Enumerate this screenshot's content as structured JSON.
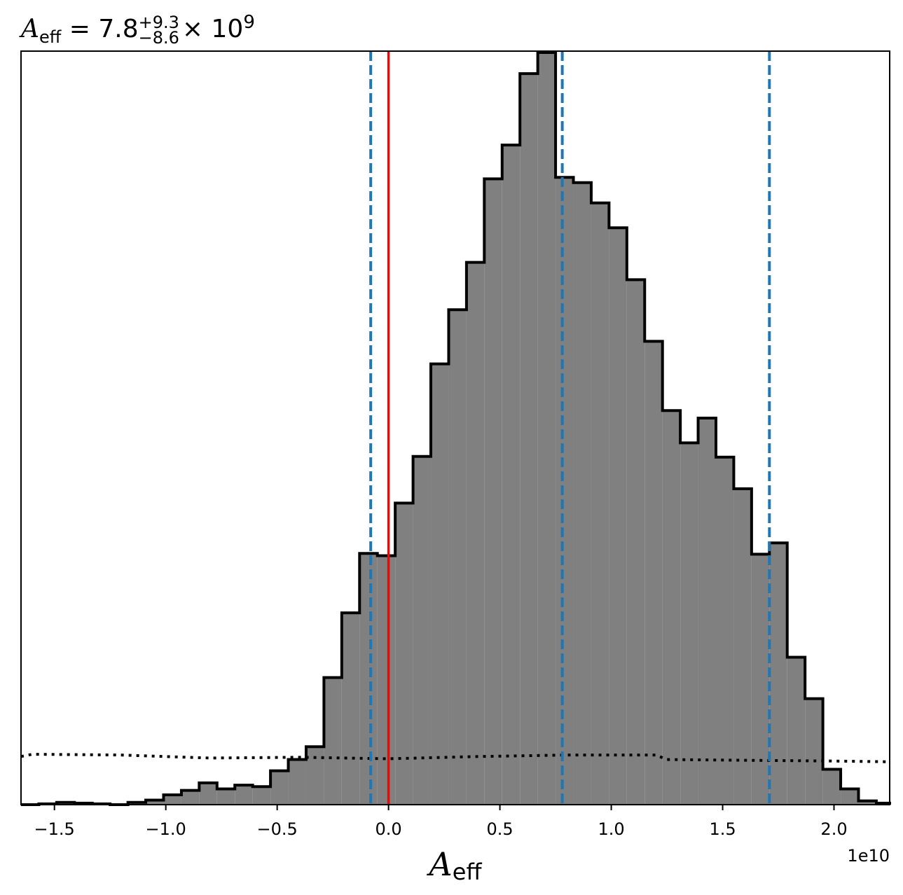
{
  "title": {
    "symbol": "A",
    "symbol_sub": "eff",
    "equals": "= 7.8",
    "sup": "+9.3",
    "sub": "−8.6",
    "times": "× 10",
    "exp": "9"
  },
  "chart_data": {
    "type": "histogram",
    "xlabel_symbol": "A",
    "xlabel_sub": "eff",
    "offset_text": "1e10",
    "xlim": [
      -1.65,
      2.25
    ],
    "ylim": [
      0,
      1.0
    ],
    "xticks": [
      -1.5,
      -1.0,
      -0.5,
      0.0,
      0.5,
      1.0,
      1.5,
      2.0
    ],
    "xtick_labels": [
      "−1.5",
      "−1.0",
      "−0.5",
      "0.0",
      "0.5",
      "1.0",
      "1.5",
      "2.0"
    ],
    "show_yticks": false,
    "bins": {
      "edges": [
        -1.65,
        -1.57,
        -1.49,
        -1.41,
        -1.33,
        -1.25,
        -1.17,
        -1.09,
        -1.01,
        -0.93,
        -0.85,
        -0.77,
        -0.69,
        -0.61,
        -0.53,
        -0.45,
        -0.37,
        -0.29,
        -0.21,
        -0.13,
        -0.05,
        0.03,
        0.11,
        0.19,
        0.27,
        0.35,
        0.43,
        0.51,
        0.59,
        0.67,
        0.75,
        0.83,
        0.91,
        0.99,
        1.07,
        1.15,
        1.23,
        1.31,
        1.39,
        1.47,
        1.55,
        1.63,
        1.71,
        1.79,
        1.87,
        1.95,
        2.03,
        2.11,
        2.19,
        2.25
      ],
      "counts": [
        0.0,
        0.001,
        0.003,
        0.002,
        0.001,
        0.0,
        0.003,
        0.006,
        0.013,
        0.019,
        0.029,
        0.021,
        0.026,
        0.024,
        0.045,
        0.06,
        0.077,
        0.169,
        0.255,
        0.334,
        0.331,
        0.401,
        0.463,
        0.586,
        0.658,
        0.721,
        0.832,
        0.877,
        0.972,
        1.0,
        0.834,
        0.827,
        0.8,
        0.767,
        0.698,
        0.616,
        0.524,
        0.481,
        0.514,
        0.462,
        0.42,
        0.333,
        0.348,
        0.196,
        0.141,
        0.047,
        0.021,
        0.005,
        0.002
      ]
    },
    "prior": {
      "x": [
        -1.65,
        -1.6,
        -1.2,
        -0.8,
        -0.4,
        0.0,
        0.4,
        0.8,
        1.2,
        1.25,
        1.6,
        2.0,
        2.25
      ],
      "y": [
        0.064,
        0.067,
        0.066,
        0.062,
        0.063,
        0.061,
        0.064,
        0.066,
        0.066,
        0.06,
        0.059,
        0.058,
        0.057
      ]
    },
    "vlines": {
      "truth": 0.0,
      "quantiles": [
        -0.08,
        0.78,
        1.71
      ]
    },
    "colors": {
      "fill": "#808080",
      "step": "#000000",
      "truth": "#ff0000",
      "quantile": "#1f77b4",
      "prior": "#000000"
    }
  }
}
